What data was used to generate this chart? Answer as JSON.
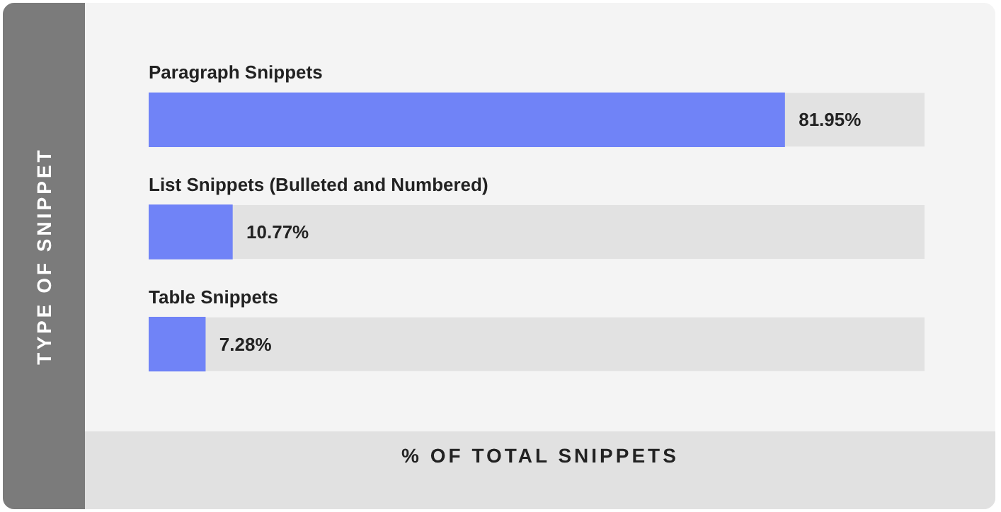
{
  "chart_data": {
    "type": "bar",
    "orientation": "horizontal",
    "xlabel": "% OF TOTAL SNIPPETS",
    "ylabel": "TYPE OF SNIPPET",
    "categories": [
      "Paragraph Snippets",
      "List Snippets (Bulleted and Numbered)",
      "Table Snippets"
    ],
    "values": [
      81.95,
      10.77,
      7.28
    ],
    "value_labels": [
      "81.95%",
      "10.77%",
      "7.28%"
    ],
    "color": "#7083f7",
    "xlim": [
      0,
      100
    ],
    "tick_labels": "y"
  }
}
